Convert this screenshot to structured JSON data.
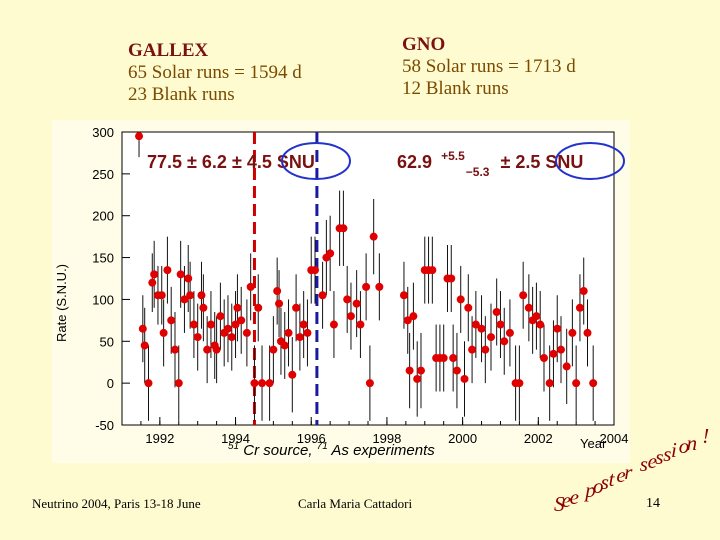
{
  "gallex": {
    "title": "GALLEX",
    "line1": "65 Solar runs = 1594 d",
    "line2": "23 Blank runs",
    "result": "77.5 ± 6.2 ± 4.5 SNU"
  },
  "gno": {
    "title": "GNO",
    "line1": "58 Solar runs = 1713 d",
    "line2": "12 Blank runs",
    "result_main": "62.9",
    "result_plus": "+5.5",
    "result_minus": "−5.3",
    "result_rest": "± 2.5 SNU"
  },
  "experiments_note": {
    "cr": "51",
    "cr_text": "Cr source, ",
    "as": "71",
    "as_text": "As experiments"
  },
  "footer": {
    "left": "Neutrino 2004, Paris 13-18 June",
    "center": "Carla Maria Cattadori",
    "page": "14"
  },
  "poster_note": "See poster session !",
  "colors": {
    "background": "#fffbd0",
    "points": "#e00000",
    "gallex_line": "#cc0000",
    "gno_line": "#1a1aa0",
    "circle": "#2233cc"
  },
  "chart_data": {
    "type": "scatter",
    "title": "",
    "xlabel": "Year",
    "ylabel": "Rate (S.N.U.)",
    "xlim": [
      1991,
      2004
    ],
    "ylim": [
      -50,
      300
    ],
    "xticks": [
      1992,
      1994,
      1996,
      1998,
      2000,
      2002,
      2004
    ],
    "yticks": [
      -50,
      0,
      50,
      100,
      150,
      200,
      250,
      300
    ],
    "error_bars": true,
    "vertical_markers": [
      {
        "x": 1994.5,
        "label": "51Cr source"
      },
      {
        "x": 1996.15,
        "label": "71As experiments"
      }
    ],
    "x": [
      1991.45,
      1991.55,
      1991.6,
      1991.7,
      1991.8,
      1991.85,
      1991.95,
      1992.05,
      1992.1,
      1992.2,
      1992.3,
      1992.4,
      1992.5,
      1992.55,
      1992.65,
      1992.75,
      1992.8,
      1992.9,
      1993.0,
      1993.1,
      1993.15,
      1993.25,
      1993.35,
      1993.45,
      1993.5,
      1993.6,
      1993.7,
      1993.8,
      1993.9,
      1994.0,
      1994.05,
      1994.15,
      1994.3,
      1994.4,
      1994.5,
      1994.6,
      1994.7,
      1994.9,
      1995.0,
      1995.1,
      1995.15,
      1995.2,
      1995.3,
      1995.4,
      1995.5,
      1995.6,
      1995.7,
      1995.8,
      1995.9,
      1996.0,
      1996.1,
      1996.3,
      1996.4,
      1996.5,
      1996.6,
      1996.75,
      1996.85,
      1996.95,
      1997.05,
      1997.2,
      1997.3,
      1997.45,
      1997.55,
      1997.65,
      1997.8,
      1998.45,
      1998.55,
      1998.6,
      1998.7,
      1998.8,
      1998.9,
      1999.0,
      1999.1,
      1999.2,
      1999.3,
      1999.4,
      1999.5,
      1999.6,
      1999.7,
      1999.75,
      1999.85,
      1999.95,
      2000.05,
      2000.15,
      2000.25,
      2000.35,
      2000.5,
      2000.6,
      2000.75,
      2000.9,
      2001.0,
      2001.1,
      2001.25,
      2001.4,
      2001.5,
      2001.6,
      2001.75,
      2001.85,
      2001.95,
      2002.05,
      2002.15,
      2002.3,
      2002.4,
      2002.5,
      2002.6,
      2002.75,
      2002.9,
      2003.0,
      2003.1,
      2003.2,
      2003.3,
      2003.45
    ],
    "y": [
      295,
      65,
      45,
      0,
      120,
      130,
      105,
      105,
      60,
      135,
      75,
      40,
      0,
      130,
      100,
      125,
      105,
      70,
      55,
      105,
      90,
      40,
      70,
      45,
      40,
      80,
      60,
      65,
      55,
      70,
      90,
      75,
      60,
      115,
      0,
      90,
      0,
      0,
      40,
      110,
      95,
      50,
      45,
      60,
      10,
      90,
      55,
      70,
      60,
      135,
      135,
      105,
      150,
      155,
      70,
      185,
      185,
      100,
      80,
      95,
      70,
      115,
      0,
      175,
      115,
      105,
      75,
      15,
      80,
      5,
      15,
      135,
      135,
      135,
      30,
      30,
      30,
      125,
      125,
      30,
      15,
      100,
      5,
      90,
      40,
      70,
      65,
      40,
      55,
      85,
      70,
      50,
      60,
      0,
      0,
      105,
      90,
      75,
      80,
      70,
      30,
      0,
      35,
      65,
      40,
      20,
      60,
      0,
      90,
      110,
      60,
      0
    ],
    "err": [
      25,
      40,
      45,
      45,
      35,
      40,
      35,
      35,
      40,
      40,
      40,
      45,
      45,
      40,
      40,
      40,
      40,
      40,
      40,
      40,
      40,
      40,
      40,
      40,
      40,
      40,
      40,
      40,
      40,
      40,
      40,
      40,
      40,
      40,
      45,
      40,
      45,
      45,
      40,
      40,
      40,
      40,
      40,
      40,
      45,
      40,
      40,
      40,
      40,
      40,
      40,
      40,
      45,
      45,
      40,
      45,
      45,
      40,
      40,
      40,
      40,
      40,
      45,
      45,
      40,
      40,
      40,
      45,
      40,
      45,
      45,
      40,
      40,
      40,
      40,
      40,
      40,
      40,
      40,
      40,
      45,
      40,
      45,
      40,
      40,
      40,
      40,
      40,
      40,
      40,
      40,
      40,
      40,
      45,
      45,
      40,
      40,
      40,
      40,
      40,
      40,
      45,
      40,
      40,
      40,
      45,
      40,
      45,
      40,
      40,
      40,
      45
    ]
  }
}
